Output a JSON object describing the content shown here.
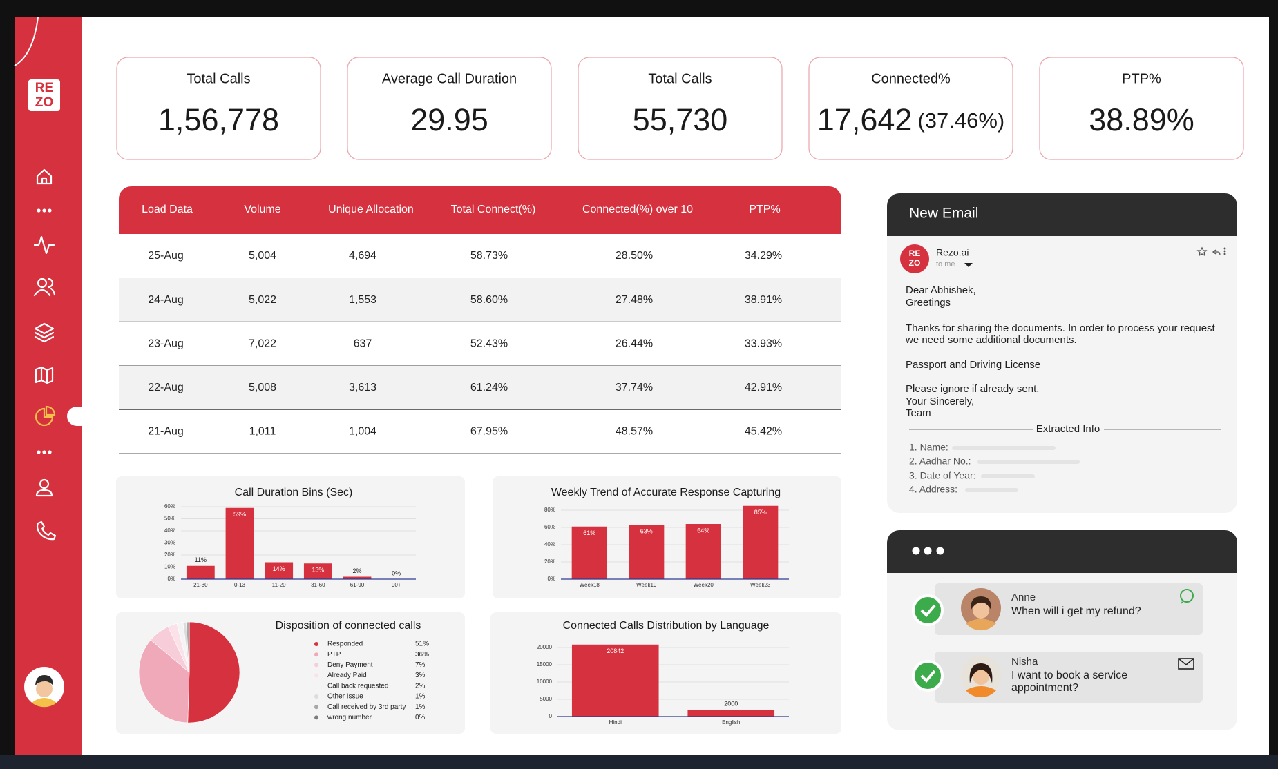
{
  "sidebar": {
    "logo": {
      "top": "RE",
      "bottom": "ZO"
    }
  },
  "kpis": [
    {
      "title": "Total Calls",
      "value": "1,56,778"
    },
    {
      "title": "Average Call Duration",
      "value": "29.95"
    },
    {
      "title": "Total Calls",
      "value": "55,730"
    },
    {
      "title": "Connected%",
      "value": "17,642",
      "sub": "(37.46%)"
    },
    {
      "title": "PTP%",
      "value": "38.89%"
    }
  ],
  "table": {
    "header": [
      "Load Data",
      "Volume",
      "Unique Allocation",
      "Total Connect(%)",
      "Connected(%) over 10",
      "PTP%"
    ],
    "rows": [
      [
        "25-Aug",
        "5,004",
        "4,694",
        "58.73%",
        "28.50%",
        "34.29%"
      ],
      [
        "24-Aug",
        "5,022",
        "1,553",
        "58.60%",
        "27.48%",
        "38.91%"
      ],
      [
        "23-Aug",
        "7,022",
        "637",
        "52.43%",
        "26.44%",
        "33.93%"
      ],
      [
        "22-Aug",
        "5,008",
        "3,613",
        "61.24%",
        "37.74%",
        "42.91%"
      ],
      [
        "21-Aug",
        "1,011",
        "1,004",
        "67.95%",
        "48.57%",
        "45.42%"
      ]
    ]
  },
  "chart_data": [
    {
      "type": "bar",
      "title": "Call Duration Bins (Sec)",
      "categories": [
        "21-30",
        "0-13",
        "11-20",
        "31-60",
        "61-90",
        "90+"
      ],
      "values": [
        11,
        59,
        14,
        13,
        2,
        0
      ],
      "value_labels": [
        "11%",
        "59%",
        "14%",
        "13%",
        "2%",
        "0%"
      ],
      "color": "#d6313e",
      "ylim": [
        0,
        60
      ],
      "yticks": [
        {
          "value": 0,
          "label": "0%"
        },
        {
          "value": 10,
          "label": "10%"
        },
        {
          "value": 20,
          "label": "20%"
        },
        {
          "value": 30,
          "label": "30%"
        },
        {
          "value": 40,
          "label": "40%"
        },
        {
          "value": 50,
          "label": "50%"
        },
        {
          "value": 60,
          "label": "60%"
        }
      ],
      "grid": true
    },
    {
      "type": "bar",
      "title": "Weekly Trend of Accurate Response Capturing",
      "categories": [
        "Week18",
        "Week19",
        "Week20",
        "Week23"
      ],
      "values": [
        61,
        63,
        64,
        85
      ],
      "value_labels": [
        "61%",
        "63%",
        "64%",
        "85%"
      ],
      "color": "#d6313e",
      "ylim": [
        0,
        80
      ],
      "yticks": [
        {
          "value": 0,
          "label": "0%"
        },
        {
          "value": 20,
          "label": "20%"
        },
        {
          "value": 40,
          "label": "40%"
        },
        {
          "value": 60,
          "label": "60%"
        },
        {
          "value": 80,
          "label": "80%"
        }
      ],
      "grid": true
    },
    {
      "type": "pie",
      "title": "Disposition of connected calls",
      "categories": [
        "Responded",
        "PTP",
        "Deny Payment",
        "Already Paid",
        "Call back requested",
        "Other Issue",
        "Call received by 3rd party",
        "wrong number"
      ],
      "values": [
        51,
        36,
        7,
        3,
        2,
        1,
        1,
        0
      ],
      "value_labels": [
        "51%",
        "36%",
        "7%",
        "3%",
        "2%",
        "1%",
        "1%",
        "0%"
      ],
      "colors": [
        "#d6313e",
        "#f0a9b9",
        "#f6cdd8",
        "#fbe2e8",
        "#f4f4f4",
        "#dcdcdc",
        "#a8a8a8",
        "#7d7d7d"
      ]
    },
    {
      "type": "bar",
      "title": "Connected Calls Distribution by Language",
      "categories": [
        "Hindi",
        "English"
      ],
      "values": [
        20842,
        2000
      ],
      "color": "#d6313e",
      "ylim": [
        0,
        20000
      ],
      "yticks": [
        0,
        5000,
        10000,
        15000,
        20000
      ],
      "grid": true
    }
  ],
  "email": {
    "title": "New Email",
    "sender": "Rezo.ai",
    "to": "to me",
    "body": [
      "Dear Abhishek,",
      "Greetings",
      "Thanks for sharing the documents. In order to process your request",
      "we need some additional documents.",
      "Passport and Driving License",
      "Please ignore if already sent.",
      "Your Sincerely,",
      "Team"
    ],
    "extracted_title": "Extracted Info",
    "fields": [
      "1. Name:",
      "2. Aadhar No.:",
      "3. Date of Year:",
      "4. Address:"
    ]
  },
  "chat": {
    "messages": [
      {
        "name": "Anne",
        "text": "When will i get my refund?"
      },
      {
        "name": "Nisha",
        "text": "I want to book a service appointment?"
      }
    ]
  }
}
